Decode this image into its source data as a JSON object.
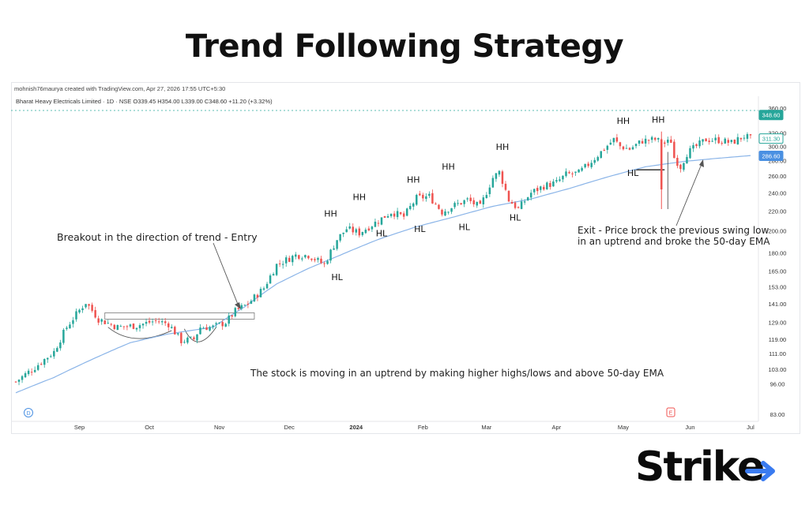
{
  "title": "Trend Following Strategy",
  "header": {
    "credit": "mohnish76maurya created with TradingView.com, Apr 27, 2026 17:55 UTC+5:30",
    "symbol_line": "Bharat Heavy Electricals Limited · 1D · NSE  O339.45  H354.00  L339.00  C348.60  +11.20 (+3.32%)"
  },
  "colors": {
    "up": "#26a69a",
    "down": "#ef5350",
    "ema": "#8ab4e8",
    "price_badge": "#26a69a",
    "ema_badge": "#4a90e2"
  },
  "chart_data": {
    "type": "candlestick",
    "ylim": [
      83,
      370
    ],
    "y_scale": "log",
    "yticks": [
      "360.00",
      "320.00",
      "300.00",
      "280.00",
      "260.00",
      "240.00",
      "220.00",
      "200.00",
      "180.00",
      "165.00",
      "153.00",
      "141.00",
      "129.00",
      "119.00",
      "111.00",
      "103.00",
      "96.00",
      "83.00"
    ],
    "xticks": [
      "Sep",
      "Oct",
      "Nov",
      "Dec",
      "2024",
      "Feb",
      "Mar",
      "Apr",
      "May",
      "Jun",
      "Jul"
    ],
    "price_badges": {
      "last": "348.60",
      "current": "311.30",
      "ema": "286.60"
    },
    "close_path": [
      [
        0,
        97
      ],
      [
        6,
        104
      ],
      [
        12,
        112
      ],
      [
        16,
        126
      ],
      [
        22,
        142
      ],
      [
        26,
        131
      ],
      [
        32,
        126
      ],
      [
        38,
        127
      ],
      [
        44,
        130
      ],
      [
        48,
        128
      ],
      [
        52,
        118
      ],
      [
        56,
        119
      ],
      [
        58,
        126
      ],
      [
        62,
        126
      ],
      [
        66,
        129
      ],
      [
        69,
        136
      ],
      [
        73,
        141
      ],
      [
        78,
        152
      ],
      [
        82,
        170
      ],
      [
        88,
        178
      ],
      [
        92,
        178
      ],
      [
        97,
        170
      ],
      [
        101,
        192
      ],
      [
        104,
        202
      ],
      [
        108,
        198
      ],
      [
        112,
        206
      ],
      [
        114,
        210
      ],
      [
        118,
        219
      ],
      [
        122,
        214
      ],
      [
        126,
        234
      ],
      [
        130,
        236
      ],
      [
        134,
        219
      ],
      [
        138,
        226
      ],
      [
        142,
        232
      ],
      [
        146,
        224
      ],
      [
        150,
        258
      ],
      [
        152,
        265
      ],
      [
        155,
        232
      ],
      [
        158,
        222
      ],
      [
        162,
        240
      ],
      [
        166,
        248
      ],
      [
        170,
        252
      ],
      [
        173,
        262
      ],
      [
        177,
        264
      ],
      [
        180,
        275
      ],
      [
        184,
        292
      ],
      [
        188,
        310
      ],
      [
        190,
        300
      ],
      [
        193,
        296
      ],
      [
        197,
        308
      ],
      [
        201,
        310
      ],
      [
        204,
        304
      ],
      [
        206,
        308
      ],
      [
        207,
        284
      ],
      [
        209,
        272
      ],
      [
        211,
        290
      ],
      [
        214,
        300
      ],
      [
        217,
        310
      ],
      [
        221,
        309
      ],
      [
        225,
        305
      ],
      [
        229,
        315
      ],
      [
        231,
        311
      ]
    ],
    "ema_path": [
      [
        0,
        92
      ],
      [
        12,
        99
      ],
      [
        24,
        108
      ],
      [
        36,
        117
      ],
      [
        48,
        122
      ],
      [
        62,
        126
      ],
      [
        72,
        139
      ],
      [
        82,
        155
      ],
      [
        92,
        167
      ],
      [
        102,
        178
      ],
      [
        114,
        192
      ],
      [
        126,
        204
      ],
      [
        138,
        214
      ],
      [
        150,
        225
      ],
      [
        162,
        233
      ],
      [
        174,
        245
      ],
      [
        186,
        259
      ],
      [
        198,
        272
      ],
      [
        210,
        279
      ],
      [
        220,
        283
      ],
      [
        231,
        287
      ]
    ],
    "annotations": [
      {
        "text": "Breakout in the direction of trend -  Entry"
      },
      {
        "text": "Exit - Price brock the previous swing low\nin an uptrend and broke the 50-day EMA"
      },
      {
        "text": "The stock is moving in an uptrend by making higher highs/lows and above 50-day EMA"
      }
    ],
    "swing_labels": [
      {
        "text": "HH",
        "day": 99,
        "value": 214
      },
      {
        "text": "HL",
        "day": 101,
        "value": 158
      },
      {
        "text": "HH",
        "day": 108,
        "value": 232
      },
      {
        "text": "HL",
        "day": 115,
        "value": 195
      },
      {
        "text": "HH",
        "day": 125,
        "value": 252
      },
      {
        "text": "HL",
        "day": 127,
        "value": 199
      },
      {
        "text": "HH",
        "day": 136,
        "value": 268
      },
      {
        "text": "HL",
        "day": 141,
        "value": 201
      },
      {
        "text": "HH",
        "day": 153,
        "value": 295
      },
      {
        "text": "HL",
        "day": 157,
        "value": 210
      },
      {
        "text": "HH",
        "day": 191,
        "value": 334
      },
      {
        "text": "HL",
        "day": 194,
        "value": 260
      },
      {
        "text": "HH",
        "day": 202,
        "value": 336
      }
    ]
  },
  "markers": {
    "d": "D",
    "e": "E"
  },
  "logo": {
    "text": "Strike"
  }
}
